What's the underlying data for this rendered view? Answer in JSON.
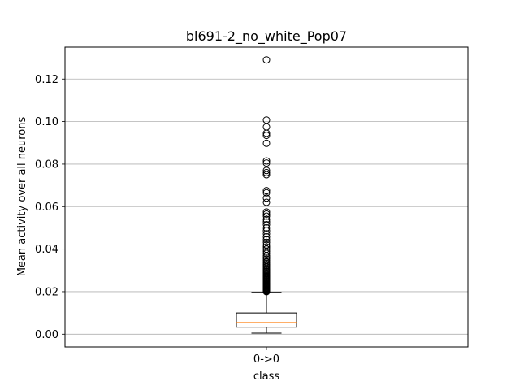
{
  "chart_data": {
    "type": "box",
    "title": "bl691-2_no_white_Pop07",
    "xlabel": "class",
    "ylabel": "Mean activity over all neurons",
    "categories": [
      "0->0"
    ],
    "ylim": [
      -0.006,
      0.135
    ],
    "yticks": [
      0.0,
      0.02,
      0.04,
      0.06,
      0.08,
      0.1,
      0.12
    ],
    "ytick_labels": [
      "0.00",
      "0.02",
      "0.04",
      "0.06",
      "0.08",
      "0.10",
      "0.12"
    ],
    "grid": "y-major",
    "boxes": [
      {
        "category": "0->0",
        "whisker_low": 0.0005,
        "q1": 0.0033,
        "median": 0.0055,
        "q3": 0.01,
        "whisker_high": 0.0197,
        "outliers": [
          0.02,
          0.0203,
          0.0206,
          0.0209,
          0.0212,
          0.0215,
          0.0218,
          0.0221,
          0.0224,
          0.0227,
          0.023,
          0.0233,
          0.0236,
          0.024,
          0.0244,
          0.0248,
          0.0252,
          0.0256,
          0.026,
          0.0264,
          0.0268,
          0.0272,
          0.0276,
          0.028,
          0.0285,
          0.029,
          0.0295,
          0.03,
          0.0305,
          0.031,
          0.0316,
          0.0322,
          0.0328,
          0.0334,
          0.034,
          0.0347,
          0.0354,
          0.0362,
          0.037,
          0.038,
          0.039,
          0.04,
          0.041,
          0.042,
          0.0432,
          0.0445,
          0.0458,
          0.0472,
          0.0486,
          0.05,
          0.0515,
          0.0528,
          0.054,
          0.0555,
          0.0565,
          0.0575,
          0.062,
          0.064,
          0.0665,
          0.0675,
          0.075,
          0.076,
          0.077,
          0.0805,
          0.0815,
          0.0898,
          0.0935,
          0.0945,
          0.0975,
          0.1007,
          0.129
        ]
      }
    ],
    "colors": {
      "box": "#000000",
      "median": "#ff7f0e",
      "grid": "#b0b0b0",
      "outlier_edge": "#000000"
    }
  }
}
